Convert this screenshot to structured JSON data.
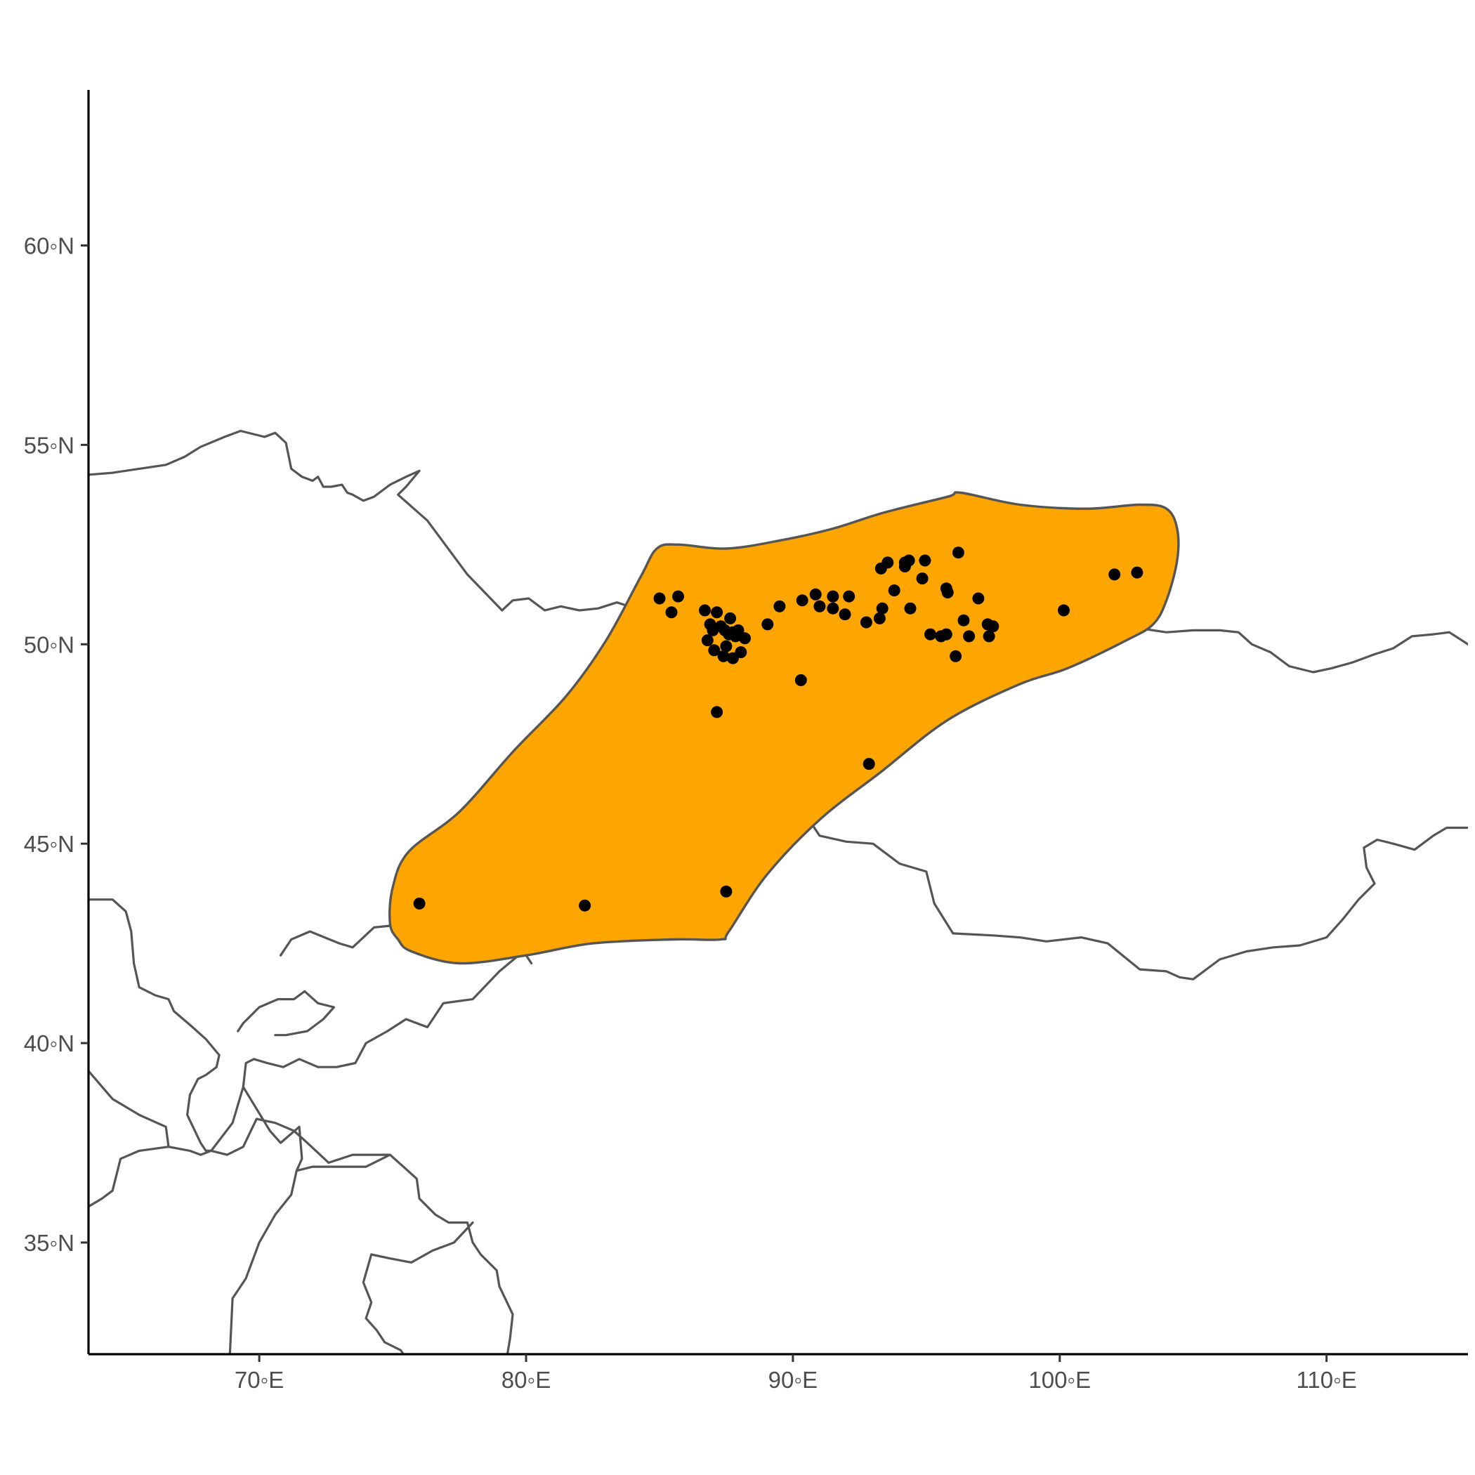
{
  "map": {
    "type": "scatter",
    "x_axis": {
      "range": [
        63.6,
        115.3
      ],
      "ticks": [
        70,
        80,
        90,
        100,
        110
      ],
      "tick_labels": [
        "70◦E",
        "80◦E",
        "90◦E",
        "100◦E",
        "110◦E"
      ]
    },
    "y_axis": {
      "range": [
        32.2,
        63.9
      ],
      "ticks": [
        35,
        40,
        45,
        50,
        55,
        60
      ],
      "tick_labels": [
        "35◦N",
        "40◦N",
        "45◦N",
        "50◦N",
        "55◦N",
        "60◦N"
      ]
    },
    "grid": false,
    "legend": "none",
    "colors": {
      "range_fill": "#FFA500",
      "range_outline": "#555555",
      "border_line": "#555555",
      "point": "#000000",
      "background": "#ffffff"
    },
    "range_polygon": [
      [
        75.2,
        42.6
      ],
      [
        75.7,
        42.3
      ],
      [
        77.5,
        42.0
      ],
      [
        80.0,
        42.2
      ],
      [
        82.5,
        42.5
      ],
      [
        85.5,
        42.6
      ],
      [
        87.3,
        42.6
      ],
      [
        87.6,
        42.8
      ],
      [
        89.0,
        44.2
      ],
      [
        91.0,
        45.6
      ],
      [
        93.3,
        46.8
      ],
      [
        95.8,
        48.1
      ],
      [
        98.5,
        49.0
      ],
      [
        100.3,
        49.4
      ],
      [
        102.5,
        50.1
      ],
      [
        103.5,
        50.5
      ],
      [
        104.0,
        51.1
      ],
      [
        104.4,
        52.1
      ],
      [
        104.4,
        52.9
      ],
      [
        104.0,
        53.4
      ],
      [
        103.0,
        53.5
      ],
      [
        101.0,
        53.4
      ],
      [
        98.5,
        53.5
      ],
      [
        96.3,
        53.8
      ],
      [
        95.8,
        53.7
      ],
      [
        93.4,
        53.3
      ],
      [
        91.5,
        52.9
      ],
      [
        89.5,
        52.6
      ],
      [
        87.5,
        52.4
      ],
      [
        85.7,
        52.5
      ],
      [
        84.9,
        52.4
      ],
      [
        84.3,
        51.7
      ],
      [
        83.0,
        50.1
      ],
      [
        81.5,
        48.7
      ],
      [
        79.5,
        47.3
      ],
      [
        77.5,
        45.8
      ],
      [
        75.6,
        44.8
      ],
      [
        75.0,
        43.9
      ],
      [
        74.9,
        43.0
      ]
    ],
    "points": [
      [
        85.0,
        51.15
      ],
      [
        85.7,
        51.2
      ],
      [
        85.45,
        50.8
      ],
      [
        86.7,
        50.85
      ],
      [
        87.15,
        50.8
      ],
      [
        87.65,
        50.65
      ],
      [
        86.9,
        50.5
      ],
      [
        87.0,
        50.35
      ],
      [
        87.3,
        50.45
      ],
      [
        87.45,
        50.35
      ],
      [
        87.75,
        50.3
      ],
      [
        87.95,
        50.35
      ],
      [
        87.6,
        50.25
      ],
      [
        87.85,
        50.2
      ],
      [
        88.2,
        50.15
      ],
      [
        86.8,
        50.1
      ],
      [
        87.05,
        49.85
      ],
      [
        87.5,
        49.95
      ],
      [
        87.4,
        49.7
      ],
      [
        87.75,
        49.65
      ],
      [
        88.05,
        49.8
      ],
      [
        89.05,
        50.5
      ],
      [
        89.5,
        50.95
      ],
      [
        90.35,
        51.1
      ],
      [
        90.85,
        51.25
      ],
      [
        91.0,
        50.95
      ],
      [
        91.5,
        51.2
      ],
      [
        91.5,
        50.9
      ],
      [
        91.95,
        50.75
      ],
      [
        92.1,
        51.2
      ],
      [
        92.75,
        50.55
      ],
      [
        93.25,
        50.65
      ],
      [
        93.35,
        50.9
      ],
      [
        93.3,
        51.9
      ],
      [
        93.55,
        52.05
      ],
      [
        93.8,
        51.35
      ],
      [
        94.2,
        51.95
      ],
      [
        94.35,
        52.1
      ],
      [
        94.2,
        52.05
      ],
      [
        94.4,
        50.9
      ],
      [
        94.85,
        51.65
      ],
      [
        94.95,
        52.1
      ],
      [
        95.15,
        50.25
      ],
      [
        95.55,
        50.2
      ],
      [
        95.75,
        50.25
      ],
      [
        95.75,
        51.4
      ],
      [
        95.8,
        51.3
      ],
      [
        96.1,
        49.7
      ],
      [
        96.2,
        52.3
      ],
      [
        96.4,
        50.6
      ],
      [
        96.6,
        50.2
      ],
      [
        96.95,
        51.15
      ],
      [
        97.3,
        50.5
      ],
      [
        97.35,
        50.2
      ],
      [
        97.5,
        50.45
      ],
      [
        100.15,
        50.85
      ],
      [
        102.05,
        51.75
      ],
      [
        102.9,
        51.8
      ],
      [
        87.15,
        48.3
      ],
      [
        90.3,
        49.1
      ],
      [
        92.85,
        47.0
      ],
      [
        76.0,
        43.5
      ],
      [
        82.2,
        43.45
      ],
      [
        87.5,
        43.8
      ]
    ],
    "borders": [
      [
        [
          63.6,
          54.25
        ],
        [
          64.5,
          54.3
        ],
        [
          65.5,
          54.4
        ],
        [
          66.5,
          54.5
        ],
        [
          67.2,
          54.7
        ],
        [
          67.8,
          54.95
        ],
        [
          68.7,
          55.2
        ],
        [
          69.3,
          55.35
        ],
        [
          70.2,
          55.2
        ],
        [
          70.6,
          55.3
        ],
        [
          71.0,
          55.05
        ],
        [
          71.2,
          54.4
        ],
        [
          71.6,
          54.2
        ],
        [
          72.0,
          54.1
        ],
        [
          72.2,
          54.2
        ],
        [
          72.4,
          53.95
        ],
        [
          72.7,
          53.95
        ],
        [
          73.1,
          54.0
        ],
        [
          73.3,
          53.8
        ],
        [
          73.5,
          53.75
        ],
        [
          73.9,
          53.6
        ],
        [
          74.3,
          53.7
        ],
        [
          74.9,
          54.0
        ],
        [
          75.5,
          54.2
        ],
        [
          76.0,
          54.35
        ],
        [
          75.5,
          53.95
        ],
        [
          75.2,
          53.75
        ],
        [
          76.3,
          53.1
        ],
        [
          77.8,
          51.75
        ],
        [
          79.1,
          50.85
        ],
        [
          79.5,
          51.1
        ],
        [
          80.1,
          51.15
        ],
        [
          80.7,
          50.85
        ],
        [
          81.3,
          50.95
        ],
        [
          82.0,
          50.85
        ],
        [
          82.7,
          50.9
        ],
        [
          83.4,
          51.05
        ],
        [
          84.1,
          50.9
        ],
        [
          84.7,
          50.9
        ],
        [
          85.5,
          50.35
        ],
        [
          86.0,
          50.1
        ],
        [
          86.5,
          49.8
        ],
        [
          87.3,
          49.2
        ],
        [
          87.8,
          49.15
        ]
      ],
      [
        [
          87.8,
          49.15
        ],
        [
          88.5,
          49.35
        ],
        [
          89.1,
          49.6
        ],
        [
          90.0,
          50.05
        ],
        [
          91.5,
          50.3
        ],
        [
          92.5,
          50.6
        ],
        [
          93.5,
          50.65
        ],
        [
          94.5,
          50.15
        ],
        [
          95.5,
          49.9
        ],
        [
          96.5,
          49.9
        ],
        [
          97.3,
          49.8
        ],
        [
          98.0,
          50.25
        ],
        [
          98.8,
          51.0
        ],
        [
          99.7,
          51.45
        ],
        [
          100.8,
          51.55
        ],
        [
          101.5,
          51.7
        ],
        [
          102.2,
          51.65
        ],
        [
          102.3,
          50.9
        ],
        [
          103.0,
          50.4
        ],
        [
          104.0,
          50.3
        ],
        [
          105.0,
          50.35
        ],
        [
          106.0,
          50.35
        ],
        [
          106.7,
          50.3
        ],
        [
          107.2,
          50.0
        ],
        [
          107.9,
          49.8
        ],
        [
          108.6,
          49.45
        ],
        [
          109.5,
          49.3
        ],
        [
          110.2,
          49.4
        ],
        [
          111.0,
          49.55
        ],
        [
          111.8,
          49.75
        ],
        [
          112.5,
          49.9
        ],
        [
          113.2,
          50.2
        ],
        [
          114.0,
          50.25
        ],
        [
          114.6,
          50.3
        ],
        [
          115.3,
          50.0
        ]
      ],
      [
        [
          87.8,
          49.15
        ],
        [
          87.6,
          48.9
        ],
        [
          88.0,
          48.5
        ],
        [
          88.8,
          48.1
        ],
        [
          89.9,
          47.9
        ],
        [
          90.4,
          47.3
        ],
        [
          90.8,
          46.5
        ],
        [
          91.0,
          46.0
        ],
        [
          90.7,
          45.5
        ],
        [
          91.0,
          45.2
        ],
        [
          92.0,
          45.05
        ],
        [
          93.0,
          45.0
        ],
        [
          94.0,
          44.5
        ],
        [
          95.0,
          44.3
        ],
        [
          95.3,
          43.5
        ],
        [
          96.0,
          42.75
        ],
        [
          97.5,
          42.7
        ],
        [
          98.5,
          42.65
        ],
        [
          99.5,
          42.55
        ],
        [
          100.8,
          42.65
        ],
        [
          101.8,
          42.5
        ],
        [
          103.0,
          41.85
        ],
        [
          104.0,
          41.8
        ],
        [
          104.5,
          41.65
        ],
        [
          105.0,
          41.6
        ],
        [
          106.0,
          42.1
        ],
        [
          107.0,
          42.3
        ],
        [
          108.0,
          42.4
        ],
        [
          109.0,
          42.45
        ],
        [
          110.0,
          42.65
        ],
        [
          110.6,
          43.1
        ],
        [
          111.2,
          43.6
        ],
        [
          111.8,
          44.0
        ],
        [
          111.5,
          44.4
        ],
        [
          111.4,
          44.9
        ],
        [
          111.9,
          45.1
        ],
        [
          112.5,
          45.0
        ],
        [
          113.3,
          44.85
        ],
        [
          114.0,
          45.2
        ],
        [
          114.5,
          45.4
        ],
        [
          115.3,
          45.4
        ]
      ],
      [
        [
          63.6,
          43.6
        ],
        [
          64.5,
          43.6
        ],
        [
          65.0,
          43.3
        ],
        [
          65.2,
          42.8
        ],
        [
          65.3,
          42.0
        ],
        [
          65.5,
          41.4
        ],
        [
          66.1,
          41.2
        ],
        [
          66.6,
          41.1
        ],
        [
          66.8,
          40.8
        ],
        [
          67.5,
          40.4
        ],
        [
          68.0,
          40.1
        ],
        [
          68.5,
          39.7
        ],
        [
          68.4,
          39.4
        ],
        [
          68.0,
          39.2
        ],
        [
          67.7,
          39.1
        ],
        [
          67.4,
          38.7
        ],
        [
          67.3,
          38.2
        ],
        [
          67.8,
          37.5
        ],
        [
          68.0,
          37.3
        ],
        [
          68.2,
          37.3
        ]
      ],
      [
        [
          63.6,
          39.3
        ],
        [
          64.5,
          38.6
        ],
        [
          65.5,
          38.2
        ],
        [
          66.5,
          37.9
        ],
        [
          66.6,
          37.4
        ],
        [
          67.4,
          37.3
        ],
        [
          67.8,
          37.2
        ],
        [
          68.2,
          37.3
        ],
        [
          68.8,
          37.2
        ],
        [
          69.4,
          37.4
        ],
        [
          69.9,
          38.1
        ],
        [
          70.6,
          38.0
        ],
        [
          71.3,
          37.8
        ],
        [
          71.8,
          37.5
        ],
        [
          72.6,
          37.0
        ],
        [
          73.5,
          37.2
        ],
        [
          74.3,
          37.2
        ],
        [
          74.9,
          37.2
        ]
      ],
      [
        [
          63.6,
          35.9
        ],
        [
          64.1,
          36.1
        ],
        [
          64.5,
          36.3
        ],
        [
          64.8,
          37.1
        ],
        [
          65.5,
          37.3
        ],
        [
          66.6,
          37.4
        ]
      ],
      [
        [
          69.2,
          40.3
        ],
        [
          69.4,
          40.5
        ],
        [
          70.0,
          40.9
        ],
        [
          70.7,
          41.1
        ],
        [
          71.3,
          41.1
        ],
        [
          71.7,
          41.3
        ],
        [
          72.2,
          41.0
        ],
        [
          72.8,
          40.9
        ],
        [
          72.4,
          40.6
        ],
        [
          71.8,
          40.3
        ],
        [
          71.0,
          40.2
        ],
        [
          70.6,
          40.2
        ]
      ],
      [
        [
          69.4,
          38.9
        ],
        [
          69.5,
          39.5
        ],
        [
          69.8,
          39.6
        ],
        [
          70.3,
          39.5
        ],
        [
          70.9,
          39.4
        ],
        [
          71.5,
          39.6
        ],
        [
          72.2,
          39.4
        ],
        [
          72.9,
          39.4
        ],
        [
          73.6,
          39.5
        ],
        [
          74.0,
          40.0
        ],
        [
          74.8,
          40.3
        ],
        [
          75.5,
          40.6
        ],
        [
          76.3,
          40.4
        ],
        [
          76.9,
          41.0
        ],
        [
          78.0,
          41.1
        ],
        [
          79.0,
          41.8
        ],
        [
          79.9,
          42.3
        ],
        [
          80.2,
          42.0
        ]
      ],
      [
        [
          70.8,
          42.2
        ],
        [
          71.2,
          42.6
        ],
        [
          71.9,
          42.8
        ],
        [
          73.0,
          42.5
        ],
        [
          73.5,
          42.4
        ],
        [
          74.3,
          42.9
        ],
        [
          75.0,
          42.95
        ],
        [
          75.6,
          42.8
        ]
      ],
      [
        [
          68.2,
          37.3
        ],
        [
          69.0,
          38.0
        ],
        [
          69.4,
          38.9
        ],
        [
          70.4,
          37.8
        ],
        [
          70.8,
          37.5
        ],
        [
          71.5,
          37.9
        ],
        [
          71.6,
          37.1
        ],
        [
          71.4,
          36.8
        ],
        [
          71.2,
          36.2
        ],
        [
          70.6,
          35.7
        ],
        [
          70.0,
          35.0
        ],
        [
          69.5,
          34.1
        ],
        [
          69.0,
          33.6
        ],
        [
          68.9,
          32.2
        ]
      ],
      [
        [
          71.4,
          36.8
        ],
        [
          72.0,
          36.9
        ],
        [
          73.1,
          36.9
        ],
        [
          74.0,
          36.9
        ],
        [
          74.9,
          37.2
        ],
        [
          75.4,
          36.9
        ],
        [
          75.9,
          36.6
        ],
        [
          76.0,
          36.1
        ],
        [
          76.6,
          35.7
        ],
        [
          77.1,
          35.5
        ],
        [
          77.8,
          35.5
        ],
        [
          78.0,
          35.0
        ],
        [
          78.3,
          34.7
        ],
        [
          78.9,
          34.3
        ],
        [
          79.0,
          33.9
        ],
        [
          79.5,
          33.2
        ],
        [
          79.4,
          32.6
        ],
        [
          79.3,
          32.2
        ]
      ],
      [
        [
          78.0,
          35.5
        ],
        [
          77.3,
          35.0
        ],
        [
          76.5,
          34.8
        ],
        [
          75.7,
          34.5
        ],
        [
          74.9,
          34.6
        ],
        [
          74.2,
          34.7
        ],
        [
          73.9,
          34.0
        ],
        [
          74.2,
          33.5
        ],
        [
          74.0,
          33.1
        ],
        [
          74.4,
          32.8
        ],
        [
          74.7,
          32.5
        ],
        [
          75.3,
          32.3
        ],
        [
          75.4,
          32.2
        ]
      ]
    ]
  }
}
